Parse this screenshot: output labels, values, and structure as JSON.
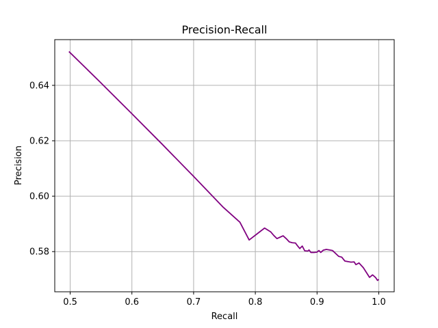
{
  "chart_data": {
    "type": "line",
    "title": "Precision-Recall",
    "xlabel": "Recall",
    "ylabel": "Precision",
    "xlim": [
      0.475,
      1.025
    ],
    "ylim": [
      0.5655,
      0.6565
    ],
    "xticks": [
      0.5,
      0.6,
      0.7,
      0.8,
      0.9,
      1.0
    ],
    "xtick_labels": [
      "0.5",
      "0.6",
      "0.7",
      "0.8",
      "0.9",
      "1.0"
    ],
    "yticks": [
      0.58,
      0.6,
      0.62,
      0.64
    ],
    "ytick_labels": [
      "0.58",
      "0.60",
      "0.62",
      "0.64"
    ],
    "grid": true,
    "series": [
      {
        "name": "precision-recall",
        "color": "#800080",
        "x": [
          0.498,
          0.548,
          0.598,
          0.648,
          0.698,
          0.748,
          0.775,
          0.79,
          0.815,
          0.825,
          0.83,
          0.835,
          0.84,
          0.845,
          0.85,
          0.855,
          0.86,
          0.865,
          0.868,
          0.872,
          0.876,
          0.88,
          0.885,
          0.887,
          0.89,
          0.895,
          0.9,
          0.903,
          0.906,
          0.91,
          0.915,
          0.92,
          0.925,
          0.935,
          0.94,
          0.945,
          0.955,
          0.96,
          0.963,
          0.968,
          0.975,
          0.985,
          0.99,
          0.995,
          0.998,
          1.0
        ],
        "y": [
          0.6522,
          0.6413,
          0.6302,
          0.619,
          0.6076,
          0.596,
          0.5906,
          0.5842,
          0.5885,
          0.5871,
          0.5858,
          0.5847,
          0.5852,
          0.5857,
          0.5847,
          0.5835,
          0.5832,
          0.5831,
          0.5822,
          0.5811,
          0.582,
          0.5803,
          0.5802,
          0.5806,
          0.5797,
          0.5797,
          0.5798,
          0.5804,
          0.5797,
          0.5805,
          0.5808,
          0.5806,
          0.5804,
          0.5783,
          0.578,
          0.5766,
          0.5762,
          0.5763,
          0.5753,
          0.5759,
          0.5742,
          0.5707,
          0.5716,
          0.5706,
          0.5696,
          0.57
        ]
      }
    ]
  }
}
